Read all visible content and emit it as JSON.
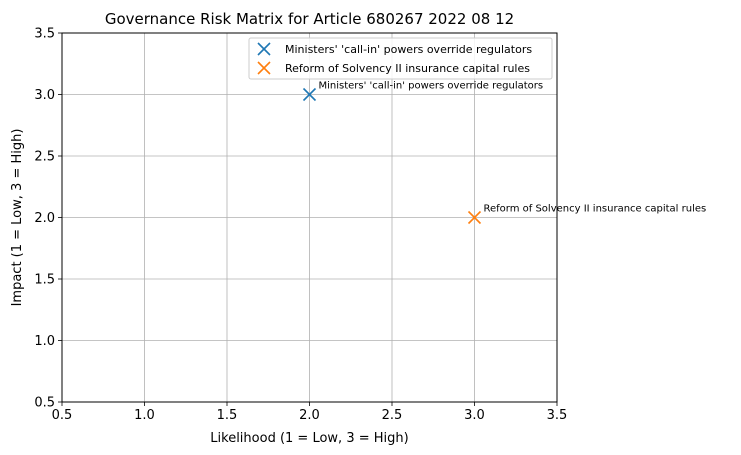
{
  "chart_data": {
    "type": "scatter",
    "title": "Governance Risk Matrix for Article 680267 2022 08 12",
    "xlabel": "Likelihood (1 = Low, 3 = High)",
    "ylabel": "Impact (1 = Low, 3 = High)",
    "xlim": [
      0.5,
      3.5
    ],
    "ylim": [
      0.5,
      3.5
    ],
    "xticks": [
      0.5,
      1.0,
      1.5,
      2.0,
      2.5,
      3.0,
      3.5
    ],
    "yticks": [
      0.5,
      1.0,
      1.5,
      2.0,
      2.5,
      3.0,
      3.5
    ],
    "xtick_labels": [
      "0.5",
      "1.0",
      "1.5",
      "2.0",
      "2.5",
      "3.0",
      "3.5"
    ],
    "ytick_labels": [
      "0.5",
      "1.0",
      "1.5",
      "2.0",
      "2.5",
      "3.0",
      "3.5"
    ],
    "grid": true,
    "legend_position": "top-right",
    "marker": "x",
    "series": [
      {
        "name": "Ministers' 'call-in' powers override regulators",
        "color": "#1f77b4",
        "x": 2.0,
        "y": 3.0,
        "annotation": "Ministers' 'call-in' powers override regulators"
      },
      {
        "name": "Reform of Solvency II insurance capital rules",
        "color": "#ff7f0e",
        "x": 3.0,
        "y": 2.0,
        "annotation": "Reform of Solvency II insurance capital rules"
      }
    ]
  }
}
